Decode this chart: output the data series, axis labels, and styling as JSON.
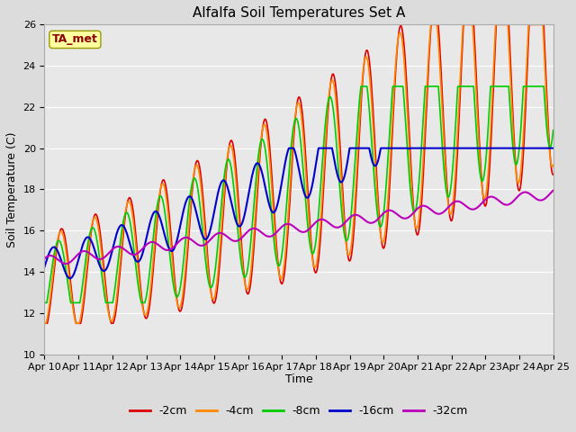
{
  "title": "Alfalfa Soil Temperatures Set A",
  "xlabel": "Time",
  "ylabel": "Soil Temperature (C)",
  "ylim": [
    10,
    26
  ],
  "xlim": [
    0,
    15
  ],
  "fig_bg_color": "#dcdcdc",
  "plot_bg_color": "#e8e8e8",
  "annotation_text": "TA_met",
  "annotation_color": "#8b0000",
  "annotation_bg": "#ffffa0",
  "series": [
    {
      "label": "-2cm",
      "color": "#dd0000",
      "linewidth": 1.2
    },
    {
      "label": "-4cm",
      "color": "#ff8800",
      "linewidth": 1.2
    },
    {
      "label": "-8cm",
      "color": "#00cc00",
      "linewidth": 1.2
    },
    {
      "label": "-16cm",
      "color": "#0000cc",
      "linewidth": 1.5
    },
    {
      "label": "-32cm",
      "color": "#bb00bb",
      "linewidth": 1.5
    }
  ],
  "xtick_labels": [
    "Apr 10",
    "Apr 11",
    "Apr 12",
    "Apr 13",
    "Apr 14",
    "Apr 15",
    "Apr 16",
    "Apr 17",
    "Apr 18",
    "Apr 19",
    "Apr 20",
    "Apr 21",
    "Apr 22",
    "Apr 23",
    "Apr 24",
    "Apr 25"
  ],
  "ytick_values": [
    10,
    12,
    14,
    16,
    18,
    20,
    22,
    24,
    26
  ],
  "grid_color": "#ffffff",
  "title_fontsize": 11,
  "tick_fontsize": 8,
  "axis_label_fontsize": 9
}
